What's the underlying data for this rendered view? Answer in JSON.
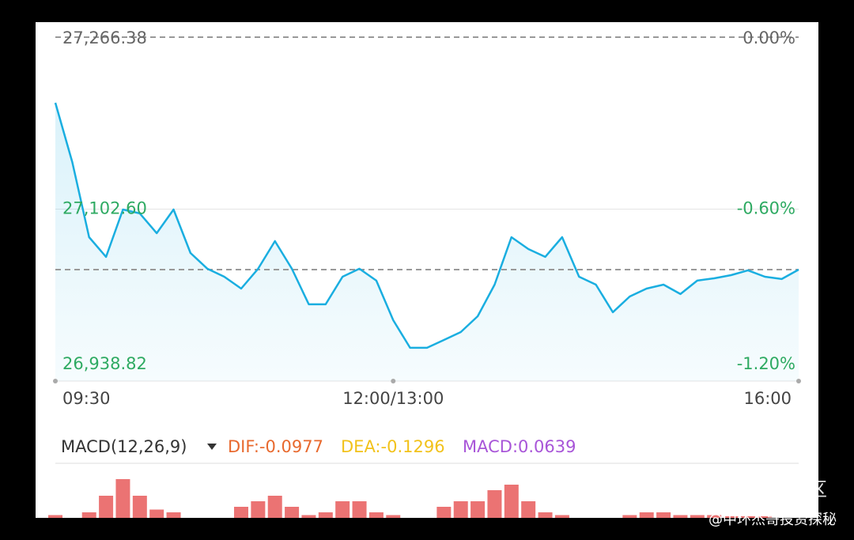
{
  "chart_data": [
    {
      "type": "line",
      "series": [
        {
          "name": null,
          "color": "#1aaee0",
          "values": [
            27203.9,
            27147.4,
            27075.9,
            27057.1,
            27102.2,
            27098.5,
            27079.7,
            27102.2,
            27060.8,
            27045.8,
            27038.2,
            27026.9,
            27045.8,
            27072.1,
            27045.8,
            27011.9,
            27011.9,
            27038.2,
            27045.8,
            27034.5,
            26996.8,
            26970.5,
            26970.5,
            26978.0,
            26985.5,
            27000.6,
            27030.7,
            27075.9,
            27064.6,
            27057.1,
            27075.9,
            27038.2,
            27030.7,
            27004.4,
            27019.4,
            27026.9,
            27030.7,
            27021.7,
            27034.5,
            27036.7,
            27039.7,
            27044.3,
            27038.2,
            27036.0,
            27045.0
          ]
        }
      ],
      "avg_line": 27045.0,
      "xlim": [
        0,
        44
      ],
      "xticks": [
        {
          "value": 0,
          "label": "09:30"
        },
        {
          "value": 20,
          "label": "12:00/13:00"
        },
        {
          "value": 44,
          "label": "16:00"
        }
      ],
      "ylim": [
        26938.82,
        27266.38
      ],
      "yticks": [
        {
          "value": 27266.38,
          "label": "27,266.38"
        },
        {
          "value": 27102.6,
          "label": "27,102.60"
        },
        {
          "value": 26938.82,
          "label": "26,938.82"
        }
      ],
      "y2lim": [
        -1.2,
        0
      ],
      "y2ticks": [
        {
          "value": 0,
          "label": "0.00%"
        },
        {
          "value": -0.6,
          "label": "-0.60%"
        },
        {
          "value": -1.2,
          "label": "-1.20%"
        }
      ]
    },
    {
      "type": "bar",
      "title": "MACD(12,26,9)",
      "dif": "DIF:-0.0977",
      "dea": "DEA:-0.1296",
      "macd": "MACD:0.0639",
      "color": "#e85a5a",
      "ylim": [
        0,
        1
      ],
      "values": [
        0.05,
        0,
        0.1,
        0.4,
        0.7,
        0.4,
        0.15,
        0.1,
        0,
        0,
        0,
        0.2,
        0.3,
        0.4,
        0.2,
        0.05,
        0.1,
        0.3,
        0.3,
        0.1,
        0.05,
        0,
        0,
        0.2,
        0.3,
        0.3,
        0.5,
        0.6,
        0.3,
        0.1,
        0.05,
        0,
        0,
        0,
        0.05,
        0.1,
        0.1,
        0.05,
        0.05,
        0.05,
        0.03,
        0.03,
        0.03,
        0,
        0
      ]
    }
  ],
  "watermark": {
    "brand": "老虎社区",
    "author": "@中环杰哥投资探秘"
  }
}
